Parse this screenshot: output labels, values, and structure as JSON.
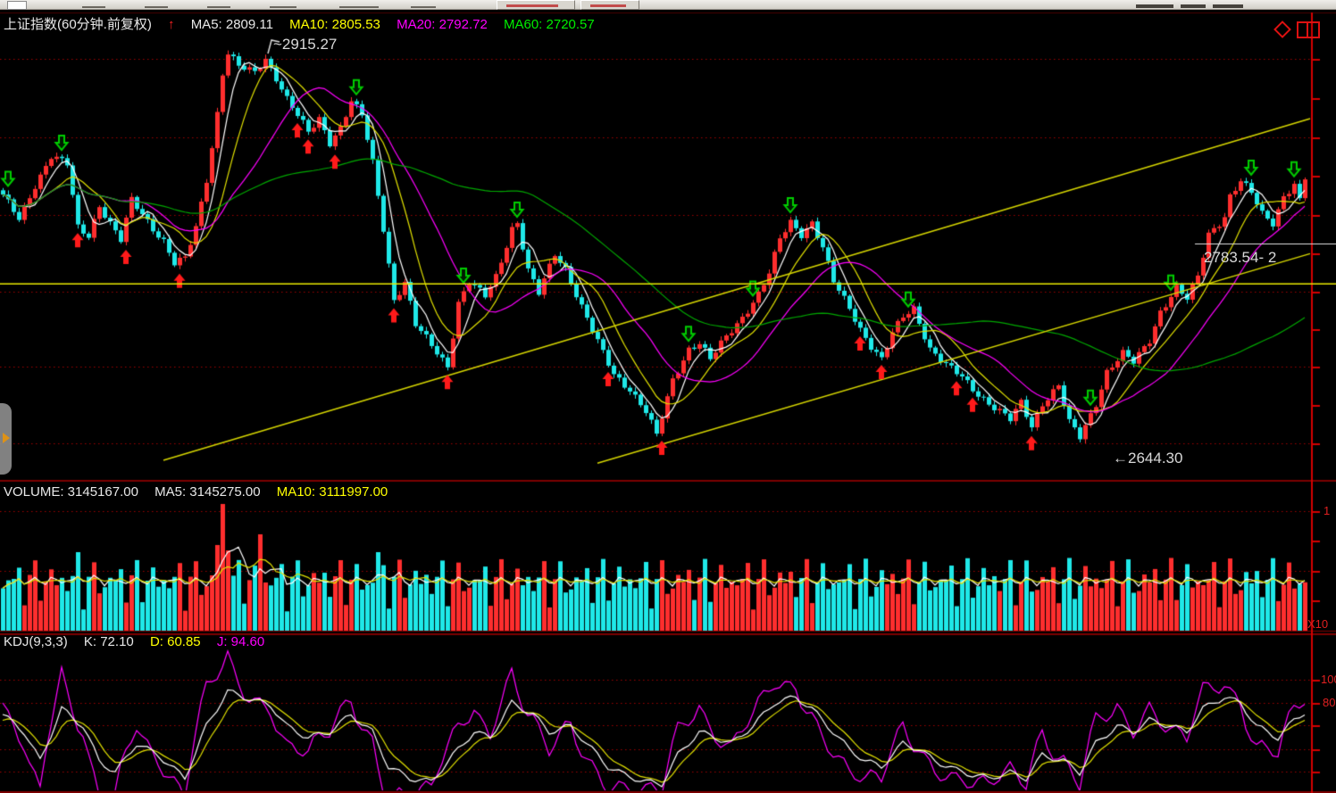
{
  "ui": {
    "main_header": {
      "title": "上证指数(60分钟.前复权)",
      "arrow": "↑",
      "ma": [
        {
          "text": "MA5: 2809.11",
          "color": "#e8e8e8"
        },
        {
          "text": "MA10: 2805.53",
          "color": "#ffff00"
        },
        {
          "text": "MA20: 2792.72",
          "color": "#ff00ff"
        },
        {
          "text": "MA60: 2720.57",
          "color": "#00ee00"
        }
      ]
    },
    "volume_header": {
      "items": [
        {
          "text": "VOLUME: 3145167.00",
          "color": "#e8e8e8"
        },
        {
          "text": "MA5: 3145275.00",
          "color": "#e8e8e8"
        },
        {
          "text": "MA10: 3111997.00",
          "color": "#ffff00"
        }
      ]
    },
    "kdj_header": {
      "items": [
        {
          "text": "KDJ(9,3,3)",
          "color": "#e8e8e8"
        },
        {
          "text": "K: 72.10",
          "color": "#e8e8e8"
        },
        {
          "text": "D: 60.85",
          "color": "#ffff00"
        },
        {
          "text": "J: 94.60",
          "color": "#ff00ff"
        }
      ]
    },
    "annotations": {
      "high": "~2915.27",
      "low": "←2644.30",
      "last": "2783.54- 2"
    },
    "axis_labels": {
      "volume_top": "1",
      "volume_multiplier": "X10",
      "kdj_upper": "100",
      "kdj_lower": "80"
    }
  },
  "colors": {
    "up": "#ff2e2e",
    "down": "#1fe8e8",
    "ma5": "#ffffff",
    "ma10": "#e0e000",
    "ma20": "#ff00ff",
    "ma60": "#00a800",
    "grid": "#a00000",
    "axis": "#d40000",
    "border": "#7d0000",
    "trendline": "#d6d600",
    "hline": "#eaea00",
    "lastline": "#e0e0e0",
    "buy_arrow": "#ff1a1a",
    "sell_arrow": "#00cc00"
  },
  "chart_data": {
    "type": "candlestick",
    "title": "上证指数(60分钟.前复权)",
    "period": "60分钟",
    "adjustment": "前复权",
    "n_bars": 244,
    "y_domain": [
      2615,
      2940
    ],
    "ma_periods": [
      5,
      10,
      20,
      60
    ],
    "ma_header_values": {
      "MA5": 2809.11,
      "MA10": 2805.53,
      "MA20": 2792.72,
      "MA60": 2720.57
    },
    "high_annotation_price": 2915.27,
    "low_annotation_price": 2644.3,
    "last_price": 2783.54,
    "horizontal_line_price": 2751,
    "trendlines": [
      {
        "from": [
          30,
          2628
        ],
        "to": [
          244,
          2866
        ]
      },
      {
        "from": [
          111,
          2626
        ],
        "to": [
          244,
          2772
        ]
      }
    ],
    "price_close_waypoints": [
      [
        0,
        2812
      ],
      [
        3,
        2796
      ],
      [
        6,
        2820
      ],
      [
        9,
        2840
      ],
      [
        12,
        2834
      ],
      [
        14,
        2790
      ],
      [
        16,
        2785
      ],
      [
        18,
        2806
      ],
      [
        20,
        2793
      ],
      [
        22,
        2781
      ],
      [
        24,
        2809
      ],
      [
        26,
        2800
      ],
      [
        28,
        2790
      ],
      [
        30,
        2781
      ],
      [
        32,
        2765
      ],
      [
        34,
        2768
      ],
      [
        36,
        2790
      ],
      [
        38,
        2824
      ],
      [
        40,
        2870
      ],
      [
        41,
        2898
      ],
      [
        42,
        2912
      ],
      [
        44,
        2902
      ],
      [
        47,
        2898
      ],
      [
        49,
        2908
      ],
      [
        51,
        2895
      ],
      [
        53,
        2880
      ],
      [
        55,
        2868
      ],
      [
        57,
        2856
      ],
      [
        59,
        2866
      ],
      [
        61,
        2850
      ],
      [
        63,
        2860
      ],
      [
        65,
        2878
      ],
      [
        67,
        2868
      ],
      [
        69,
        2835
      ],
      [
        71,
        2790
      ],
      [
        73,
        2740
      ],
      [
        75,
        2752
      ],
      [
        77,
        2722
      ],
      [
        80,
        2708
      ],
      [
        83,
        2694
      ],
      [
        85,
        2738
      ],
      [
        87,
        2752
      ],
      [
        90,
        2742
      ],
      [
        92,
        2756
      ],
      [
        95,
        2790
      ],
      [
        96,
        2794
      ],
      [
        98,
        2760
      ],
      [
        100,
        2744
      ],
      [
        103,
        2772
      ],
      [
        105,
        2762
      ],
      [
        108,
        2735
      ],
      [
        111,
        2710
      ],
      [
        114,
        2688
      ],
      [
        117,
        2678
      ],
      [
        120,
        2662
      ],
      [
        122,
        2645
      ],
      [
        125,
        2684
      ],
      [
        128,
        2706
      ],
      [
        130,
        2710
      ],
      [
        132,
        2698
      ],
      [
        135,
        2714
      ],
      [
        138,
        2728
      ],
      [
        141,
        2744
      ],
      [
        143,
        2758
      ],
      [
        145,
        2782
      ],
      [
        147,
        2794
      ],
      [
        149,
        2786
      ],
      [
        151,
        2794
      ],
      [
        153,
        2776
      ],
      [
        155,
        2752
      ],
      [
        158,
        2734
      ],
      [
        160,
        2720
      ],
      [
        162,
        2708
      ],
      [
        164,
        2698
      ],
      [
        166,
        2716
      ],
      [
        168,
        2728
      ],
      [
        170,
        2734
      ],
      [
        173,
        2706
      ],
      [
        176,
        2694
      ],
      [
        179,
        2686
      ],
      [
        181,
        2678
      ],
      [
        184,
        2668
      ],
      [
        186,
        2662
      ],
      [
        188,
        2656
      ],
      [
        190,
        2668
      ],
      [
        192,
        2652
      ],
      [
        194,
        2668
      ],
      [
        197,
        2680
      ],
      [
        199,
        2654
      ],
      [
        201,
        2644
      ],
      [
        204,
        2668
      ],
      [
        206,
        2690
      ],
      [
        209,
        2702
      ],
      [
        211,
        2696
      ],
      [
        214,
        2712
      ],
      [
        216,
        2732
      ],
      [
        219,
        2748
      ],
      [
        221,
        2740
      ],
      [
        223,
        2756
      ],
      [
        225,
        2786
      ],
      [
        228,
        2798
      ],
      [
        229,
        2812
      ],
      [
        231,
        2822
      ],
      [
        233,
        2814
      ],
      [
        235,
        2800
      ],
      [
        237,
        2794
      ],
      [
        239,
        2812
      ],
      [
        241,
        2820
      ],
      [
        242,
        2808
      ],
      [
        243,
        2824
      ]
    ],
    "buy_marker_bars": [
      14,
      23,
      33,
      55,
      57,
      62,
      73,
      83,
      113,
      123,
      160,
      164,
      178,
      181,
      192
    ],
    "sell_marker_bars": [
      1,
      11,
      66,
      86,
      96,
      128,
      140,
      147,
      169,
      203,
      218,
      233,
      241
    ],
    "volume": {
      "header_values": {
        "VOLUME": 3145167.0,
        "MA5": 3145275.0,
        "MA10": 3111997.0
      },
      "profile": {
        "base": 34,
        "a1": 34,
        "f1": 0.83,
        "a2": 16,
        "f2": 2.31
      },
      "spikes": {
        "14": 88,
        "40": 96,
        "41": 142,
        "42": 90,
        "48": 108,
        "70": 88
      }
    },
    "kdj": {
      "params": "9,3,3",
      "K": 72.1,
      "D": 60.85,
      "J": 94.6,
      "k_waypoints": [
        [
          0,
          70
        ],
        [
          4,
          55
        ],
        [
          7,
          30
        ],
        [
          11,
          75
        ],
        [
          15,
          60
        ],
        [
          18,
          30
        ],
        [
          21,
          20
        ],
        [
          25,
          45
        ],
        [
          29,
          35
        ],
        [
          34,
          15
        ],
        [
          38,
          60
        ],
        [
          42,
          90
        ],
        [
          45,
          85
        ],
        [
          50,
          78
        ],
        [
          53,
          60
        ],
        [
          57,
          50
        ],
        [
          61,
          55
        ],
        [
          65,
          70
        ],
        [
          69,
          55
        ],
        [
          72,
          25
        ],
        [
          76,
          15
        ],
        [
          80,
          12
        ],
        [
          85,
          40
        ],
        [
          88,
          55
        ],
        [
          91,
          50
        ],
        [
          95,
          80
        ],
        [
          99,
          70
        ],
        [
          102,
          55
        ],
        [
          106,
          60
        ],
        [
          110,
          40
        ],
        [
          113,
          25
        ],
        [
          116,
          18
        ],
        [
          120,
          12
        ],
        [
          123,
          10
        ],
        [
          126,
          35
        ],
        [
          130,
          55
        ],
        [
          133,
          50
        ],
        [
          136,
          45
        ],
        [
          140,
          60
        ],
        [
          144,
          80
        ],
        [
          148,
          85
        ],
        [
          151,
          75
        ],
        [
          155,
          55
        ],
        [
          158,
          40
        ],
        [
          161,
          30
        ],
        [
          164,
          25
        ],
        [
          168,
          45
        ],
        [
          171,
          40
        ],
        [
          174,
          30
        ],
        [
          178,
          22
        ],
        [
          181,
          18
        ],
        [
          184,
          15
        ],
        [
          188,
          20
        ],
        [
          191,
          15
        ],
        [
          194,
          35
        ],
        [
          198,
          30
        ],
        [
          201,
          20
        ],
        [
          204,
          45
        ],
        [
          208,
          60
        ],
        [
          211,
          55
        ],
        [
          214,
          65
        ],
        [
          218,
          60
        ],
        [
          221,
          55
        ],
        [
          224,
          75
        ],
        [
          228,
          85
        ],
        [
          231,
          80
        ],
        [
          234,
          60
        ],
        [
          238,
          50
        ],
        [
          241,
          65
        ],
        [
          243,
          72
        ]
      ]
    }
  }
}
